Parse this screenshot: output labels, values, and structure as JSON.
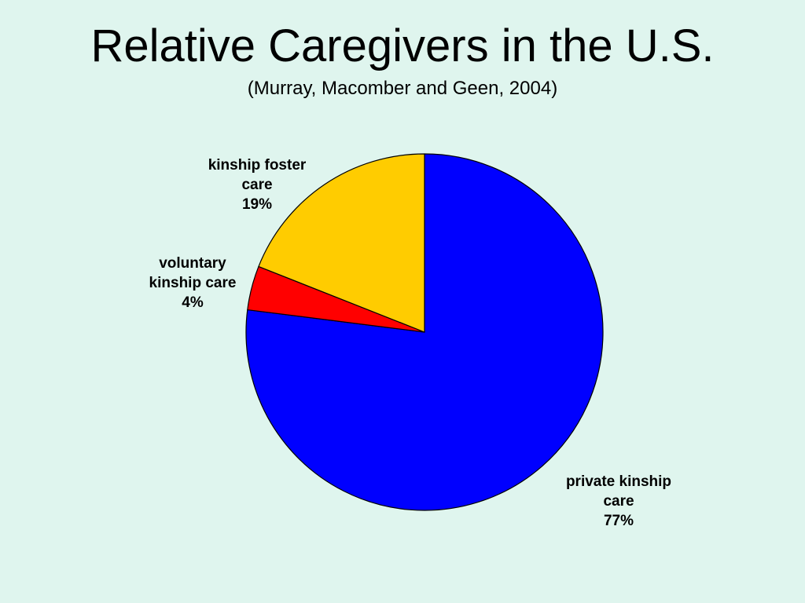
{
  "slide": {
    "title": "Relative Caregivers in the U.S.",
    "subtitle": "(Murray, Macomber and Geen, 2004)"
  },
  "chart_data": {
    "type": "pie",
    "title": "Relative Caregivers in the U.S.",
    "subtitle": "(Murray, Macomber and Geen, 2004)",
    "start_angle_deg": 0,
    "direction": "clockwise",
    "slices": [
      {
        "label": "private kinship care",
        "value": 77,
        "percent_label": "77%",
        "label_lines": [
          "private kinship",
          "care",
          "77%"
        ],
        "color": "#0000ff"
      },
      {
        "label": "voluntary kinship care",
        "value": 4,
        "percent_label": "4%",
        "label_lines": [
          "voluntary",
          "kinship care",
          "4%"
        ],
        "color": "#ff0000"
      },
      {
        "label": "kinship foster care",
        "value": 19,
        "percent_label": "19%",
        "label_lines": [
          "kinship foster",
          "care",
          "19%"
        ],
        "color": "#ffcc00"
      }
    ],
    "legend": "none",
    "labels": "outside"
  }
}
